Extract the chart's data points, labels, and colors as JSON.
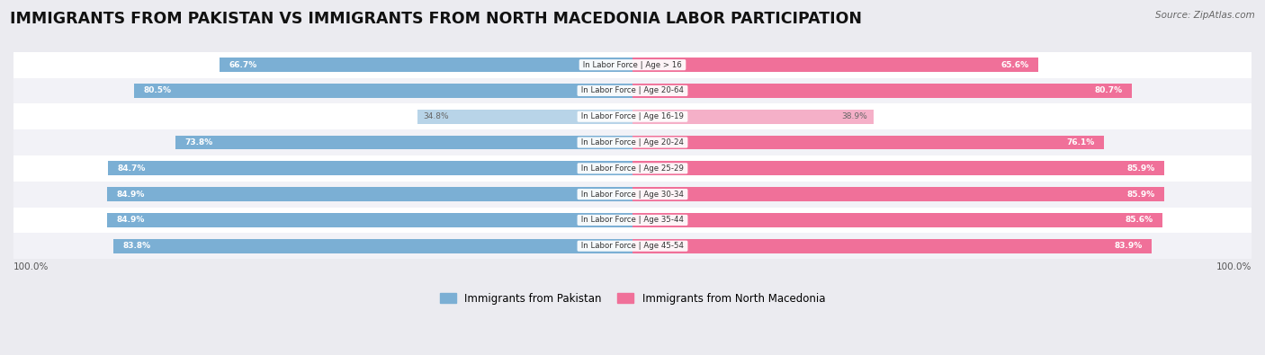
{
  "title": "IMMIGRANTS FROM PAKISTAN VS IMMIGRANTS FROM NORTH MACEDONIA LABOR PARTICIPATION",
  "source": "Source: ZipAtlas.com",
  "categories": [
    "In Labor Force | Age > 16",
    "In Labor Force | Age 20-64",
    "In Labor Force | Age 16-19",
    "In Labor Force | Age 20-24",
    "In Labor Force | Age 25-29",
    "In Labor Force | Age 30-34",
    "In Labor Force | Age 35-44",
    "In Labor Force | Age 45-54"
  ],
  "pakistan_values": [
    66.7,
    80.5,
    34.8,
    73.8,
    84.7,
    84.9,
    84.9,
    83.8
  ],
  "macedonia_values": [
    65.6,
    80.7,
    38.9,
    76.1,
    85.9,
    85.9,
    85.6,
    83.9
  ],
  "pakistan_color": "#7BAFD4",
  "pakistan_color_light": "#B8D4E8",
  "macedonia_color": "#F07099",
  "macedonia_color_light": "#F5B0C8",
  "bar_height": 0.55,
  "background_color": "#ebebf0",
  "row_bg_even": "#ffffff",
  "row_bg_odd": "#f2f2f7",
  "title_fontsize": 12.5,
  "legend_label_pakistan": "Immigrants from Pakistan",
  "legend_label_macedonia": "Immigrants from North Macedonia",
  "max_value": 100.0
}
